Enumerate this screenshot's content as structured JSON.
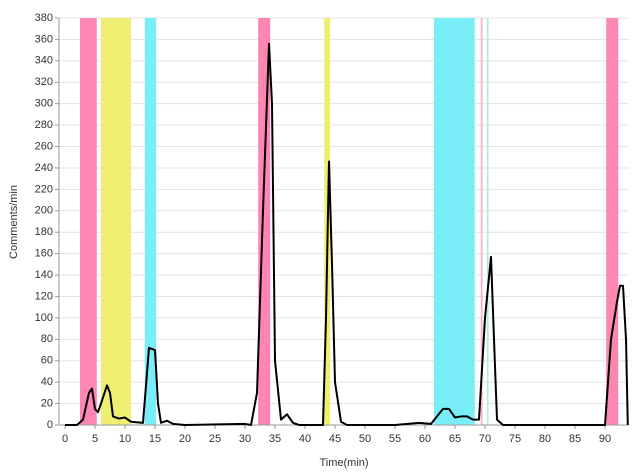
{
  "chart_data": {
    "type": "line",
    "x_label": "Time(min)",
    "y_label": "Comments/min",
    "color": "#000000",
    "xlim": [
      -1,
      94
    ],
    "ylim": [
      0,
      380
    ],
    "xticks": [
      0,
      5,
      10,
      15,
      20,
      25,
      30,
      35,
      40,
      45,
      50,
      55,
      60,
      65,
      70,
      75,
      80,
      85,
      90
    ],
    "yticks": [
      0,
      20,
      40,
      60,
      80,
      100,
      120,
      140,
      160,
      180,
      200,
      220,
      240,
      260,
      280,
      300,
      320,
      340,
      360,
      380
    ],
    "grid": true,
    "bands": [
      {
        "x0": 2.5,
        "x1": 5.3,
        "color": "#ff85b3"
      },
      {
        "x0": 6,
        "x1": 11,
        "color": "#eeee70"
      },
      {
        "x0": 13.3,
        "x1": 15.2,
        "color": "#7aeef8"
      },
      {
        "x0": 32.2,
        "x1": 34.2,
        "color": "#ff85b3"
      },
      {
        "x0": 43.2,
        "x1": 44.2,
        "color": "#eeee70"
      },
      {
        "x0": 61.5,
        "x1": 68.3,
        "color": "#7aeef8"
      },
      {
        "x0": 69.3,
        "x1": 69.6,
        "color": "#ffb0c8"
      },
      {
        "x0": 70.3,
        "x1": 70.6,
        "color": "#b0f0d8"
      },
      {
        "x0": 90.2,
        "x1": 92.2,
        "color": "#ff85b3"
      }
    ],
    "x": [
      0,
      2,
      3,
      4,
      4.5,
      5,
      5.5,
      6,
      7,
      7.5,
      8,
      9,
      10,
      10.5,
      11,
      13,
      14,
      15,
      15.5,
      16,
      17,
      18,
      20,
      30,
      31,
      32,
      33,
      34,
      34.5,
      35,
      36,
      37,
      38,
      39,
      43,
      43.5,
      44,
      44.5,
      45,
      46,
      47,
      55,
      59,
      61,
      62,
      63,
      64,
      65,
      66,
      67,
      68,
      69,
      70,
      71,
      71.5,
      72,
      73,
      90,
      91,
      92,
      92.5,
      93,
      93.5,
      93.8
    ],
    "values": [
      0,
      0,
      5,
      30,
      34,
      15,
      12,
      20,
      37,
      30,
      8,
      6,
      7,
      5,
      3,
      2,
      72,
      70,
      20,
      2,
      4,
      1,
      0,
      1,
      0,
      30,
      200,
      356,
      300,
      60,
      5,
      10,
      2,
      0,
      0,
      100,
      246,
      150,
      40,
      3,
      0,
      0,
      2,
      1,
      8,
      15,
      15,
      7,
      8,
      8,
      5,
      5,
      100,
      157,
      80,
      5,
      0,
      0,
      80,
      115,
      130,
      130,
      80,
      0
    ]
  }
}
